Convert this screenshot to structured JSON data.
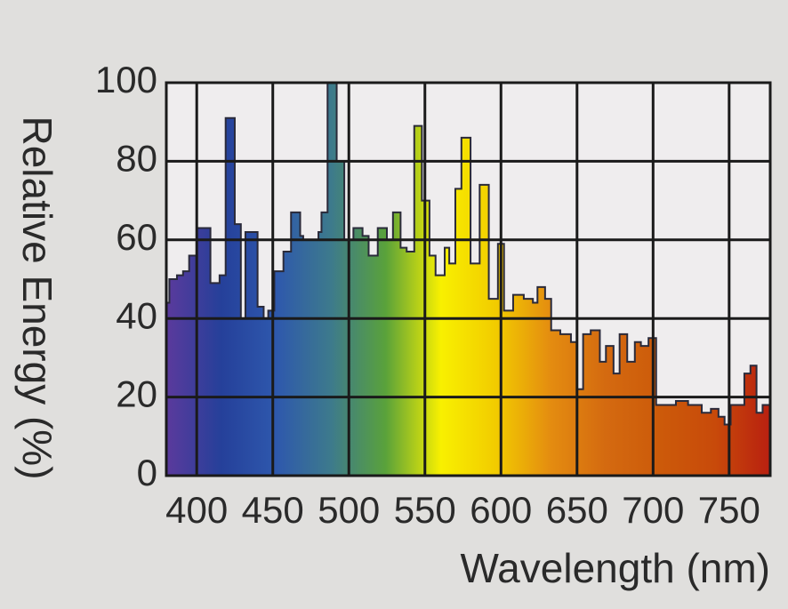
{
  "chart_data": {
    "type": "step-area",
    "x_label": "Wavelength (nm)",
    "y_label": "Relative Energy (%)",
    "x": [
      380,
      382,
      387,
      391,
      395,
      400,
      409,
      415,
      419,
      425,
      429,
      432,
      440,
      444,
      447,
      451,
      457,
      462,
      468,
      470,
      480,
      482,
      486,
      492,
      497,
      503,
      509,
      513,
      519,
      525,
      529,
      534,
      538,
      543,
      548,
      553,
      557,
      563,
      566,
      570,
      574,
      580,
      586,
      592,
      598,
      602,
      608,
      615,
      621,
      624,
      629,
      633,
      639,
      646,
      650,
      654,
      659,
      665,
      669,
      674,
      678,
      683,
      688,
      692,
      697,
      702,
      715,
      723,
      732,
      738,
      743,
      747,
      751,
      754,
      760,
      764,
      768,
      772
    ],
    "values": [
      44,
      50,
      51,
      52,
      56,
      63,
      49,
      51,
      91,
      64,
      40,
      62,
      43,
      40,
      42,
      52,
      57,
      67,
      61,
      60,
      62,
      67,
      100,
      80,
      60,
      63,
      61,
      56,
      63,
      60,
      67,
      58,
      57,
      89,
      70,
      56,
      51,
      58,
      54,
      73,
      86,
      54,
      74,
      45,
      59,
      42,
      46,
      45,
      44,
      48,
      45,
      37,
      36,
      34,
      22,
      36,
      37,
      29,
      33,
      26,
      36,
      29,
      34,
      33,
      35,
      18,
      19,
      18,
      16,
      17,
      15,
      13,
      18,
      18,
      26,
      28,
      16,
      18
    ],
    "gradient_colors": [
      "#5b3a9c",
      "#25409a",
      "#2e58ad",
      "#3d7a8c",
      "#5aa23a",
      "#f8f000",
      "#f2cc00",
      "#e48c10",
      "#d46a10",
      "#cc5a0a",
      "#c84a0a",
      "#b82010"
    ],
    "xlim": [
      380,
      777
    ],
    "ylim": [
      0,
      100
    ],
    "xticks": [
      400,
      450,
      500,
      550,
      600,
      650,
      700,
      750
    ],
    "yticks": [
      0,
      20,
      40,
      60,
      80,
      100
    ],
    "grid": true,
    "plot_background": "#efedee"
  }
}
